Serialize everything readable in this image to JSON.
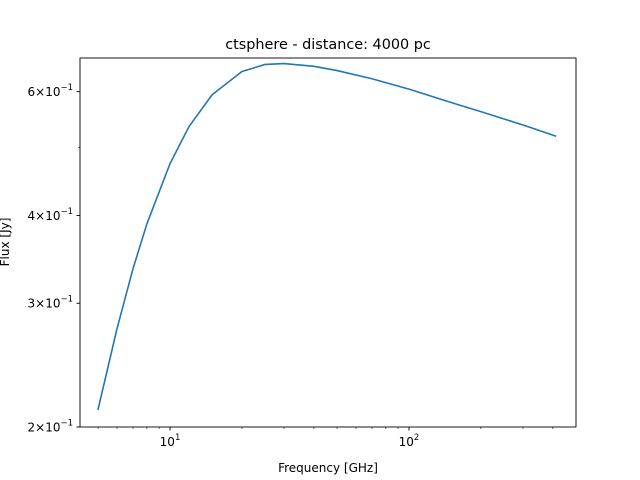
{
  "chart_data": {
    "type": "line",
    "title": "ctsphere - distance: 4000 pc",
    "xlabel": "Frequency [GHz]",
    "ylabel": "Flux [Jy]",
    "xscale": "log",
    "yscale": "log",
    "xlim": [
      4.2,
      500
    ],
    "ylim": [
      0.2,
      0.67
    ],
    "grid": false,
    "line_color": "#1f77b4",
    "x_major_ticks": [
      {
        "value": 10,
        "base": "10",
        "exp": "1"
      },
      {
        "value": 100,
        "base": "10",
        "exp": "2"
      }
    ],
    "y_major_ticks": [
      {
        "value": 0.2,
        "mant": "2",
        "exp": "−1"
      },
      {
        "value": 0.3,
        "mant": "3",
        "exp": "−1"
      },
      {
        "value": 0.4,
        "mant": "4",
        "exp": "−1"
      },
      {
        "value": 0.6,
        "mant": "6",
        "exp": "−1"
      }
    ],
    "x_minor_ticks": [
      5,
      6,
      7,
      8,
      9,
      20,
      30,
      40,
      50,
      60,
      70,
      80,
      90,
      200,
      300,
      400
    ],
    "y_minor_ticks": [
      0.5
    ],
    "series": [
      {
        "x": [
          5.0,
          6.0,
          7.0,
          8.0,
          10.0,
          12.0,
          15.0,
          20.0,
          25.0,
          30.0,
          40.0,
          50.0,
          70.0,
          100.0,
          150.0,
          200.0,
          300.0,
          410.0
        ],
        "values": [
          0.212,
          0.276,
          0.336,
          0.389,
          0.474,
          0.535,
          0.594,
          0.641,
          0.656,
          0.658,
          0.652,
          0.643,
          0.626,
          0.605,
          0.579,
          0.562,
          0.538,
          0.519
        ]
      }
    ]
  }
}
